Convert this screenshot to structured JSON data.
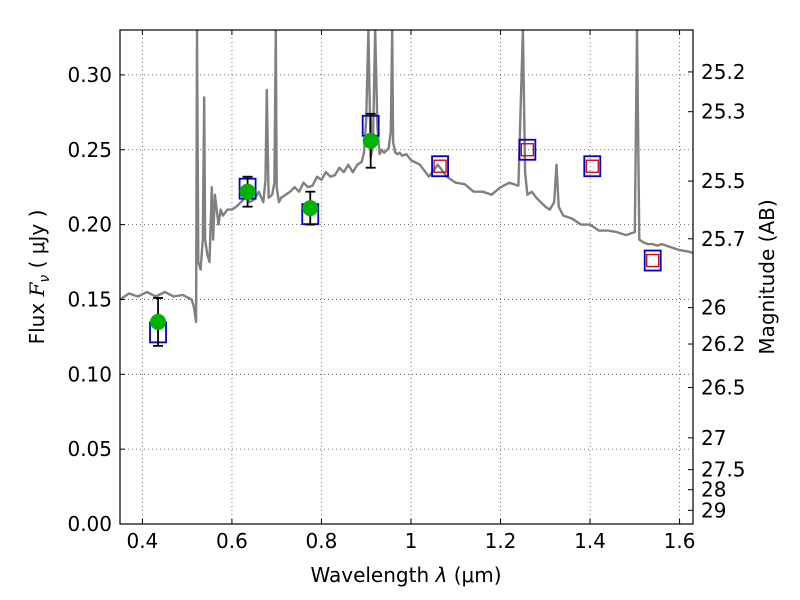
{
  "chart_data": {
    "type": "scatter",
    "title": "",
    "xlabel": {
      "prefix": "Wavelength ",
      "lambda": "λ",
      "unit": "(μm)"
    },
    "ylabel": {
      "prefix": "Flux ",
      "F": "F",
      "nu": "ν",
      "unit": "( μJy )"
    },
    "ylabel_right": "Magnitude (AB)",
    "xlim": [
      0.35,
      1.63
    ],
    "ylim": [
      0.0,
      0.33
    ],
    "grid": true,
    "x_ticks": [
      {
        "value": 0.4,
        "label": "0.4"
      },
      {
        "value": 0.6,
        "label": "0.6"
      },
      {
        "value": 0.8,
        "label": "0.8"
      },
      {
        "value": 1.0,
        "label": "1"
      },
      {
        "value": 1.2,
        "label": "1.2"
      },
      {
        "value": 1.4,
        "label": "1.4"
      },
      {
        "value": 1.6,
        "label": "1.6"
      }
    ],
    "y_ticks": [
      {
        "value": 0.0,
        "label": "0.00"
      },
      {
        "value": 0.05,
        "label": "0.05"
      },
      {
        "value": 0.1,
        "label": "0.10"
      },
      {
        "value": 0.15,
        "label": "0.15"
      },
      {
        "value": 0.2,
        "label": "0.20"
      },
      {
        "value": 0.25,
        "label": "0.25"
      },
      {
        "value": 0.3,
        "label": "0.30"
      }
    ],
    "mag_ticks": [
      {
        "mag": 25.2,
        "label": "25.2"
      },
      {
        "mag": 25.3,
        "label": "25.3"
      },
      {
        "mag": 25.5,
        "label": "25.5"
      },
      {
        "mag": 25.7,
        "label": "25.7"
      },
      {
        "mag": 26.0,
        "label": "26"
      },
      {
        "mag": 26.2,
        "label": "26.2"
      },
      {
        "mag": 26.5,
        "label": "26.5"
      },
      {
        "mag": 27.0,
        "label": "27"
      },
      {
        "mag": 27.5,
        "label": "27.5"
      },
      {
        "mag": 28.0,
        "label": "28"
      },
      {
        "mag": 29.0,
        "label": "29"
      }
    ],
    "series": [
      {
        "kind": "model_spectrum",
        "color": "#808080",
        "x": [
          0.35,
          0.37,
          0.39,
          0.41,
          0.43,
          0.45,
          0.47,
          0.49,
          0.51,
          0.515,
          0.52,
          0.522,
          0.525,
          0.53,
          0.535,
          0.538,
          0.54,
          0.545,
          0.55,
          0.555,
          0.558,
          0.562,
          0.57,
          0.575,
          0.58,
          0.59,
          0.6,
          0.61,
          0.62,
          0.63,
          0.64,
          0.65,
          0.66,
          0.67,
          0.675,
          0.678,
          0.682,
          0.69,
          0.695,
          0.698,
          0.7,
          0.705,
          0.71,
          0.72,
          0.73,
          0.74,
          0.75,
          0.76,
          0.77,
          0.78,
          0.79,
          0.8,
          0.81,
          0.82,
          0.83,
          0.84,
          0.85,
          0.86,
          0.87,
          0.88,
          0.89,
          0.895,
          0.9,
          0.905,
          0.91,
          0.915,
          0.92,
          0.925,
          0.93,
          0.935,
          0.94,
          0.95,
          0.955,
          0.958,
          0.96,
          0.965,
          0.97,
          0.975,
          0.98,
          0.99,
          1.0,
          1.02,
          1.04,
          1.06,
          1.08,
          1.1,
          1.12,
          1.14,
          1.16,
          1.18,
          1.2,
          1.22,
          1.24,
          1.25,
          1.255,
          1.26,
          1.27,
          1.28,
          1.29,
          1.3,
          1.31,
          1.32,
          1.325,
          1.33,
          1.34,
          1.36,
          1.38,
          1.4,
          1.42,
          1.44,
          1.46,
          1.48,
          1.5,
          1.505,
          1.51,
          1.52,
          1.53,
          1.54,
          1.55,
          1.56,
          1.58,
          1.6,
          1.62,
          1.63
        ],
        "y": [
          0.15,
          0.154,
          0.152,
          0.155,
          0.152,
          0.155,
          0.152,
          0.153,
          0.15,
          0.145,
          0.135,
          0.33,
          0.175,
          0.17,
          0.19,
          0.285,
          0.19,
          0.18,
          0.175,
          0.225,
          0.19,
          0.22,
          0.2,
          0.21,
          0.206,
          0.21,
          0.21,
          0.212,
          0.215,
          0.218,
          0.215,
          0.217,
          0.222,
          0.215,
          0.23,
          0.29,
          0.218,
          0.22,
          0.228,
          0.33,
          0.225,
          0.215,
          0.218,
          0.22,
          0.222,
          0.225,
          0.222,
          0.228,
          0.225,
          0.226,
          0.232,
          0.23,
          0.235,
          0.232,
          0.233,
          0.238,
          0.235,
          0.24,
          0.235,
          0.24,
          0.242,
          0.248,
          0.27,
          0.33,
          0.245,
          0.252,
          0.33,
          0.265,
          0.247,
          0.25,
          0.248,
          0.251,
          0.262,
          0.33,
          0.255,
          0.248,
          0.247,
          0.248,
          0.246,
          0.247,
          0.243,
          0.24,
          0.232,
          0.24,
          0.232,
          0.228,
          0.227,
          0.222,
          0.222,
          0.22,
          0.225,
          0.228,
          0.226,
          0.33,
          0.235,
          0.22,
          0.222,
          0.218,
          0.215,
          0.212,
          0.21,
          0.215,
          0.24,
          0.212,
          0.206,
          0.204,
          0.2,
          0.2,
          0.196,
          0.196,
          0.195,
          0.193,
          0.195,
          0.33,
          0.19,
          0.188,
          0.187,
          0.187,
          0.186,
          0.187,
          0.185,
          0.183,
          0.182,
          0.181
        ]
      },
      {
        "kind": "model_photometry",
        "marker": "square",
        "color": "#0000cc",
        "x": [
          0.435,
          0.635,
          0.775,
          0.91,
          1.065,
          1.26,
          1.405,
          1.54
        ],
        "y": [
          0.128,
          0.224,
          0.207,
          0.266,
          0.239,
          0.25,
          0.239,
          0.176
        ]
      },
      {
        "kind": "upper_limits",
        "marker": "square",
        "color": "#cc0000",
        "x": [
          1.065,
          1.26,
          1.405,
          1.54
        ],
        "y": [
          0.239,
          0.25,
          0.239,
          0.176
        ]
      },
      {
        "kind": "observed",
        "marker": "circle",
        "color": "#00b300",
        "x": [
          0.435,
          0.635,
          0.775,
          0.91
        ],
        "y": [
          0.135,
          0.222,
          0.211,
          0.256
        ],
        "yerr": [
          0.016,
          0.01,
          0.011,
          0.018
        ]
      }
    ]
  }
}
